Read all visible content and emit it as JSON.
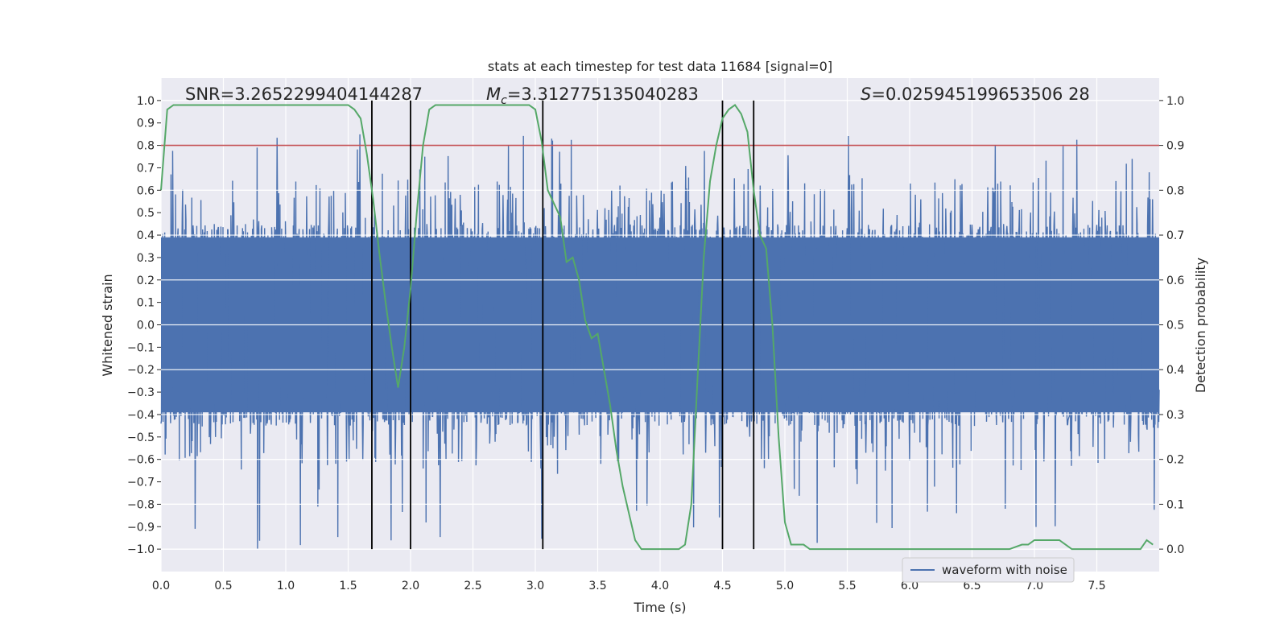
{
  "chart_data": {
    "type": "line",
    "title": "stats at each timestep for test data 11684 [signal=0]",
    "xlabel": "Time (s)",
    "ylabel": "Whitened strain",
    "y2label": "Detection probability",
    "xlim": [
      0,
      8
    ],
    "ylim": [
      -1.1,
      1.1
    ],
    "y2lim": [
      -0.05,
      1.05
    ],
    "x_ticks": [
      0.0,
      0.5,
      1.0,
      1.5,
      2.0,
      2.5,
      3.0,
      3.5,
      4.0,
      4.5,
      5.0,
      5.5,
      6.0,
      6.5,
      7.0,
      7.5
    ],
    "x_tick_labels": [
      "0.0",
      "0.5",
      "1.0",
      "1.5",
      "2.0",
      "2.5",
      "3.0",
      "3.5",
      "4.0",
      "4.5",
      "5.0",
      "5.5",
      "6.0",
      "6.5",
      "7.0",
      "7.5"
    ],
    "y_ticks": [
      -1.0,
      -0.9,
      -0.8,
      -0.7,
      -0.6,
      -0.5,
      -0.4,
      -0.3,
      -0.2,
      -0.1,
      0.0,
      0.1,
      0.2,
      0.3,
      0.4,
      0.5,
      0.6,
      0.7,
      0.8,
      0.9,
      1.0
    ],
    "y_tick_labels": [
      "−1.0",
      "−0.9",
      "−0.8",
      "−0.7",
      "−0.6",
      "−0.5",
      "−0.4",
      "−0.3",
      "−0.2",
      "−0.1",
      "0.0",
      "0.1",
      "0.2",
      "0.3",
      "0.4",
      "0.5",
      "0.6",
      "0.7",
      "0.8",
      "0.9",
      "1.0"
    ],
    "y2_ticks": [
      0.0,
      0.1,
      0.2,
      0.3,
      0.4,
      0.5,
      0.6,
      0.7,
      0.8,
      0.9,
      1.0
    ],
    "y2_tick_labels": [
      "0.0",
      "0.1",
      "0.2",
      "0.3",
      "0.4",
      "0.5",
      "0.6",
      "0.7",
      "0.8",
      "0.9",
      "1.0"
    ],
    "grid": true,
    "legend": {
      "entries": [
        "waveform with noise"
      ],
      "location": "lower-right"
    },
    "annotations": {
      "snr": "SNR=3.2652299404144287",
      "mc_symbol": "M",
      "mc_subscript": "c",
      "mc_value": "=3.312775135040283",
      "s_symbol": "S",
      "s_value": "=0.025945199653506 28"
    },
    "threshold": {
      "value": 0.9,
      "axis": "y2",
      "color": "#c44e52"
    },
    "vertical_lines": [
      1.69,
      2.0,
      3.06,
      4.5,
      4.75
    ],
    "waveform": {
      "name": "waveform with noise",
      "color": "#4c72b0",
      "samples": 2400,
      "core_amplitude": 0.4,
      "peak_max": 0.85,
      "trough_min": -1.0,
      "seed": 11684
    },
    "detection_probability": {
      "color": "#55a868",
      "x": [
        0.0,
        0.05,
        0.1,
        0.15,
        0.2,
        0.3,
        0.5,
        0.8,
        1.0,
        1.3,
        1.5,
        1.55,
        1.6,
        1.65,
        1.7,
        1.75,
        1.8,
        1.85,
        1.9,
        1.95,
        2.0,
        2.05,
        2.1,
        2.15,
        2.2,
        2.5,
        2.8,
        2.95,
        3.0,
        3.05,
        3.1,
        3.15,
        3.2,
        3.25,
        3.3,
        3.35,
        3.4,
        3.45,
        3.5,
        3.55,
        3.6,
        3.65,
        3.7,
        3.75,
        3.8,
        3.85,
        3.9,
        4.0,
        4.1,
        4.15,
        4.2,
        4.25,
        4.3,
        4.35,
        4.4,
        4.45,
        4.5,
        4.55,
        4.6,
        4.65,
        4.7,
        4.75,
        4.8,
        4.85,
        4.9,
        4.95,
        5.0,
        5.05,
        5.1,
        5.15,
        5.2,
        5.3,
        5.5,
        6.0,
        6.5,
        6.8,
        6.9,
        6.95,
        7.0,
        7.05,
        7.1,
        7.15,
        7.2,
        7.25,
        7.3,
        7.5,
        7.8,
        7.85,
        7.9,
        7.95
      ],
      "y": [
        0.8,
        0.98,
        0.99,
        0.99,
        0.99,
        0.99,
        0.99,
        0.99,
        0.99,
        0.99,
        0.99,
        0.98,
        0.96,
        0.88,
        0.78,
        0.66,
        0.55,
        0.45,
        0.36,
        0.45,
        0.58,
        0.75,
        0.9,
        0.98,
        0.99,
        0.99,
        0.99,
        0.99,
        0.98,
        0.91,
        0.8,
        0.77,
        0.74,
        0.64,
        0.65,
        0.6,
        0.51,
        0.47,
        0.48,
        0.4,
        0.32,
        0.22,
        0.14,
        0.08,
        0.02,
        0.0,
        0.0,
        0.0,
        0.0,
        0.0,
        0.01,
        0.1,
        0.38,
        0.65,
        0.82,
        0.9,
        0.96,
        0.98,
        0.99,
        0.97,
        0.93,
        0.8,
        0.7,
        0.67,
        0.5,
        0.25,
        0.06,
        0.01,
        0.01,
        0.01,
        0.0,
        0.0,
        0.0,
        0.0,
        0.0,
        0.0,
        0.01,
        0.01,
        0.02,
        0.02,
        0.02,
        0.02,
        0.02,
        0.01,
        0.0,
        0.0,
        0.0,
        0.0,
        0.02,
        0.01
      ]
    }
  }
}
